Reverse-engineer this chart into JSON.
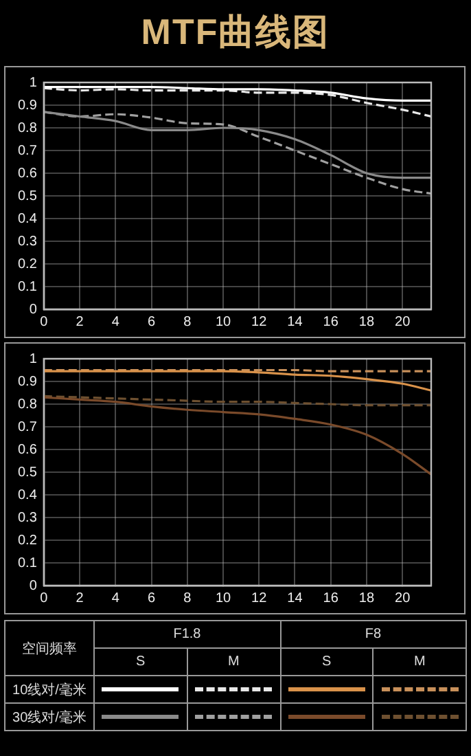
{
  "chart_data": [
    {
      "type": "line",
      "title": "MTF曲线图",
      "subtitle": "F1.8",
      "legend_title": "空间频率",
      "annotations": [
        "S",
        "M",
        "10线对/毫米",
        "30线对/毫米"
      ],
      "grid": true,
      "marker": "none",
      "x": [
        0,
        2,
        4,
        6,
        8,
        10,
        12,
        14,
        16,
        18,
        20,
        21.6
      ],
      "xlim": [
        0,
        21.6
      ],
      "xticks": [
        0,
        2,
        4,
        6,
        8,
        10,
        12,
        14,
        16,
        18,
        20
      ],
      "ylim": [
        0,
        1
      ],
      "yticks": [
        0,
        0.1,
        0.2,
        0.3,
        0.4,
        0.5,
        0.6,
        0.7,
        0.8,
        0.9,
        1
      ],
      "series": [
        {
          "color": "#ffffff",
          "line_style": "solid",
          "values": [
            0.98,
            0.98,
            0.98,
            0.98,
            0.975,
            0.97,
            0.97,
            0.965,
            0.955,
            0.93,
            0.92,
            0.92
          ]
        },
        {
          "color": "#e8e8e8",
          "line_style": "dashed",
          "values": [
            0.975,
            0.965,
            0.97,
            0.965,
            0.965,
            0.965,
            0.955,
            0.955,
            0.945,
            0.91,
            0.88,
            0.85
          ]
        },
        {
          "color": "#8a8a8a",
          "line_style": "solid",
          "values": [
            0.87,
            0.85,
            0.83,
            0.79,
            0.79,
            0.8,
            0.79,
            0.75,
            0.68,
            0.6,
            0.58,
            0.58
          ]
        },
        {
          "color": "#a0a0a0",
          "line_style": "dashed",
          "values": [
            0.87,
            0.85,
            0.86,
            0.845,
            0.82,
            0.815,
            0.76,
            0.7,
            0.64,
            0.58,
            0.53,
            0.51
          ]
        }
      ]
    },
    {
      "type": "line",
      "subtitle": "F8",
      "annotations": [
        "S",
        "M"
      ],
      "grid": true,
      "marker": "none",
      "x": [
        0,
        2,
        4,
        6,
        8,
        10,
        12,
        14,
        16,
        18,
        20,
        21.6
      ],
      "xlim": [
        0,
        21.6
      ],
      "xticks": [
        0,
        2,
        4,
        6,
        8,
        10,
        12,
        14,
        16,
        18,
        20
      ],
      "ylim": [
        0,
        1
      ],
      "yticks": [
        0,
        0.1,
        0.2,
        0.3,
        0.4,
        0.5,
        0.6,
        0.7,
        0.8,
        0.9,
        1
      ],
      "series": [
        {
          "color": "#d9924a",
          "line_style": "solid",
          "values": [
            0.945,
            0.945,
            0.945,
            0.945,
            0.945,
            0.945,
            0.94,
            0.93,
            0.925,
            0.91,
            0.89,
            0.86
          ]
        },
        {
          "color": "#c8905a",
          "line_style": "dashed",
          "values": [
            0.95,
            0.95,
            0.95,
            0.95,
            0.95,
            0.95,
            0.95,
            0.95,
            0.945,
            0.945,
            0.945,
            0.945
          ]
        },
        {
          "color": "#7a4a2a",
          "line_style": "solid",
          "values": [
            0.83,
            0.82,
            0.81,
            0.79,
            0.775,
            0.765,
            0.755,
            0.735,
            0.71,
            0.665,
            0.58,
            0.49
          ]
        },
        {
          "color": "#6e5030",
          "line_style": "dashed",
          "values": [
            0.835,
            0.83,
            0.825,
            0.82,
            0.815,
            0.81,
            0.81,
            0.805,
            0.8,
            0.795,
            0.795,
            0.795
          ]
        }
      ]
    }
  ]
}
